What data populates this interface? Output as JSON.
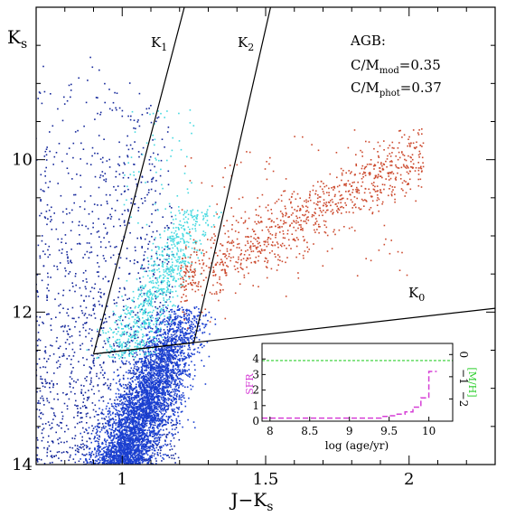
{
  "chart_data": [
    {
      "type": "scatter",
      "title": "",
      "xlabel": "J−K",
      "xlabel_sub": "s",
      "ylabel": "K",
      "ylabel_sub": "s",
      "xlim": [
        0.7,
        2.3
      ],
      "ylim": [
        14,
        8.0
      ],
      "y_inverted": true,
      "xticks": [
        1,
        1.5,
        2
      ],
      "xtick_labels": [
        "1",
        "1.5",
        "2"
      ],
      "yticks": [
        10,
        12,
        14
      ],
      "ytick_labels": [
        "10",
        "12",
        "14"
      ],
      "grid": false,
      "series_colors": {
        "main_sequence": "#1a3fd0",
        "foreground": "#13269a",
        "k1_region": "#45d9e0",
        "k2_region": "#cc4a2e"
      },
      "series": [
        {
          "role": "foreground",
          "x_range": [
            0.7,
            1.2
          ],
          "y_range": [
            8.6,
            14.0
          ],
          "approx_points": 1500
        },
        {
          "role": "rgb_agb_dense",
          "x_range": [
            0.85,
            1.27
          ],
          "y_range": [
            11.9,
            14.0
          ],
          "approx_points": 4000
        },
        {
          "role": "k1_cyan",
          "x_range": [
            0.95,
            1.33
          ],
          "y_range": [
            9.3,
            12.6
          ],
          "approx_points": 800
        },
        {
          "role": "k2_red",
          "x_range": [
            1.15,
            2.1
          ],
          "y_range": [
            9.4,
            12.0
          ],
          "approx_points": 900
        }
      ],
      "region_lines": [
        {
          "label": "K",
          "label_sub": "1",
          "points": [
            [
              0.9,
              12.55
            ],
            [
              1.22,
              7.95
            ]
          ]
        },
        {
          "label": "K",
          "label_sub": "2",
          "points": [
            [
              1.25,
              12.4
            ],
            [
              1.52,
              7.95
            ]
          ]
        },
        {
          "label": "K",
          "label_sub": "0",
          "points": [
            [
              0.9,
              12.55
            ],
            [
              2.3,
              11.95
            ]
          ]
        },
        {
          "label": "",
          "points": [
            [
              0.9,
              12.55
            ],
            [
              1.25,
              12.4
            ]
          ]
        }
      ],
      "annotations": [
        {
          "text": "AGB:"
        },
        {
          "text": "C/M",
          "sub": "mod",
          "value": "=0.35"
        },
        {
          "text": "C/M",
          "sub": "phot",
          "value": "=0.37"
        }
      ]
    },
    {
      "type": "line",
      "title": "",
      "xlabel": "log (age/yr)",
      "ylabel_left": "SFR",
      "ylabel_right": "[M/H]",
      "xlim": [
        7.9,
        10.3
      ],
      "ylim_left": [
        0,
        5
      ],
      "ylim_right": [
        -3,
        0.5
      ],
      "xticks": [
        8,
        8.5,
        9,
        9.5,
        10
      ],
      "xtick_labels": [
        "8",
        "8.5",
        "9",
        "9.5",
        "10"
      ],
      "yticks_left": [
        0,
        1,
        2,
        3,
        4
      ],
      "ytick_labels_left": [
        "0",
        "1",
        "2",
        "3",
        "4"
      ],
      "yticks_right": [
        -2,
        -1,
        0
      ],
      "ytick_labels_right": [
        "−2",
        "−1",
        "0"
      ],
      "series": [
        {
          "color": "#d63fd6",
          "style": "dashed-steps",
          "x": [
            7.9,
            8.0,
            8.5,
            9.0,
            9.4,
            9.5,
            9.6,
            9.7,
            9.8,
            9.9,
            10.0,
            10.1
          ],
          "y": [
            0.2,
            0.2,
            0.2,
            0.2,
            0.3,
            0.35,
            0.45,
            0.6,
            0.9,
            1.5,
            3.2,
            3.2
          ]
        },
        {
          "color": "#2fcf2f",
          "style": "dashed",
          "x": [
            7.9,
            10.3
          ],
          "y": [
            3.9,
            3.9
          ]
        }
      ]
    }
  ]
}
